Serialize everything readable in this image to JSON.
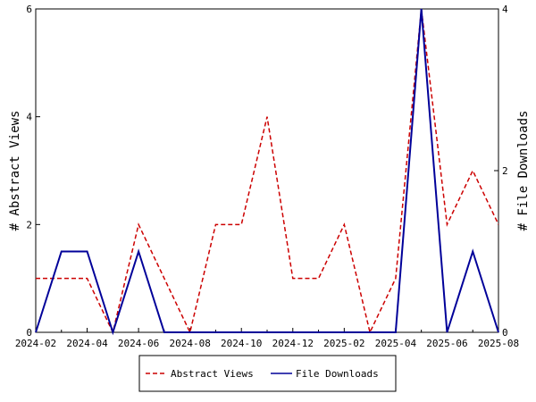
{
  "chart_data": {
    "type": "line",
    "xlabel": "",
    "ylabel_left": "# Abstract Views",
    "ylabel_right": "# File Downloads",
    "x": [
      "2024-02",
      "2024-03",
      "2024-04",
      "2024-05",
      "2024-06",
      "2024-07",
      "2024-08",
      "2024-09",
      "2024-10",
      "2024-11",
      "2024-12",
      "2025-01",
      "2025-02",
      "2025-03",
      "2025-04",
      "2025-05",
      "2025-06",
      "2025-07",
      "2025-08"
    ],
    "x_tick_labels": [
      "2024-02",
      "2024-04",
      "2024-06",
      "2024-08",
      "2024-10",
      "2024-12",
      "2025-02",
      "2025-04",
      "2025-06",
      "2025-08"
    ],
    "ylim_left": [
      0,
      6
    ],
    "yticks_left": [
      "0",
      "2",
      "4",
      "6"
    ],
    "ylim_right": [
      0,
      4
    ],
    "yticks_right": [
      "0",
      "2",
      "4"
    ],
    "series": [
      {
        "name": "Abstract Views",
        "axis": "left",
        "color": "#cc0000",
        "style": "dashed",
        "values": [
          1,
          1,
          1,
          0,
          2,
          1,
          0,
          2,
          2,
          4,
          1,
          1,
          2,
          0,
          1,
          6,
          2,
          3,
          2
        ]
      },
      {
        "name": "File Downloads",
        "axis": "right",
        "color": "#000099",
        "style": "solid",
        "values": [
          0,
          1,
          1,
          0,
          1,
          0,
          0,
          0,
          0,
          0,
          0,
          0,
          0,
          0,
          0,
          4,
          0,
          1,
          0
        ]
      }
    ],
    "grid": false,
    "legend_position": "bottom"
  }
}
